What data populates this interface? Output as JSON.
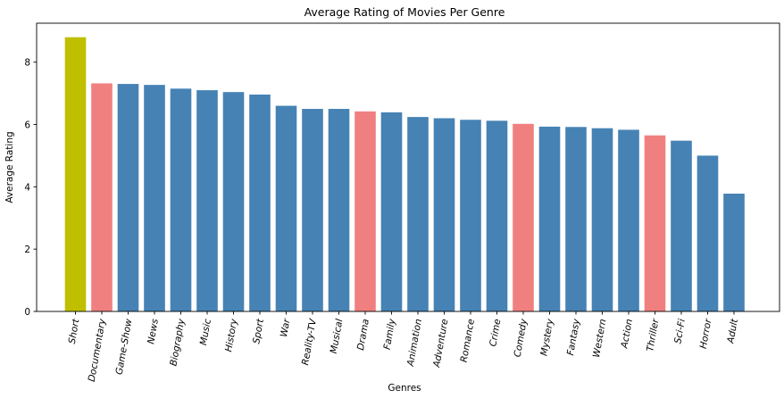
{
  "chart_data": {
    "type": "bar",
    "title": "Average Rating of Movies Per Genre",
    "xlabel": "Genres",
    "ylabel": "Average Rating",
    "ylim": [
      0,
      9.25
    ],
    "yticks": [
      0,
      2,
      4,
      6,
      8
    ],
    "grid": false,
    "categories": [
      "Short",
      "Documentary",
      "Game-Show",
      "News",
      "Biography",
      "Music",
      "History",
      "Sport",
      "War",
      "Reality-TV",
      "Musical",
      "Drama",
      "Family",
      "Animation",
      "Adventure",
      "Romance",
      "Crime",
      "Comedy",
      "Mystery",
      "Fantasy",
      "Western",
      "Action",
      "Thriller",
      "Sci-Fi",
      "Horror",
      "Adult"
    ],
    "values": [
      8.8,
      7.32,
      7.3,
      7.27,
      7.15,
      7.1,
      7.04,
      6.96,
      6.6,
      6.5,
      6.5,
      6.42,
      6.39,
      6.24,
      6.2,
      6.15,
      6.12,
      6.02,
      5.93,
      5.92,
      5.88,
      5.83,
      5.65,
      5.48,
      5.0,
      3.78
    ],
    "colors": [
      "#bfbf00",
      "#f08080",
      "#4682b4",
      "#4682b4",
      "#4682b4",
      "#4682b4",
      "#4682b4",
      "#4682b4",
      "#4682b4",
      "#4682b4",
      "#4682b4",
      "#f08080",
      "#4682b4",
      "#4682b4",
      "#4682b4",
      "#4682b4",
      "#4682b4",
      "#f08080",
      "#4682b4",
      "#4682b4",
      "#4682b4",
      "#4682b4",
      "#f08080",
      "#4682b4",
      "#4682b4",
      "#4682b4"
    ]
  }
}
